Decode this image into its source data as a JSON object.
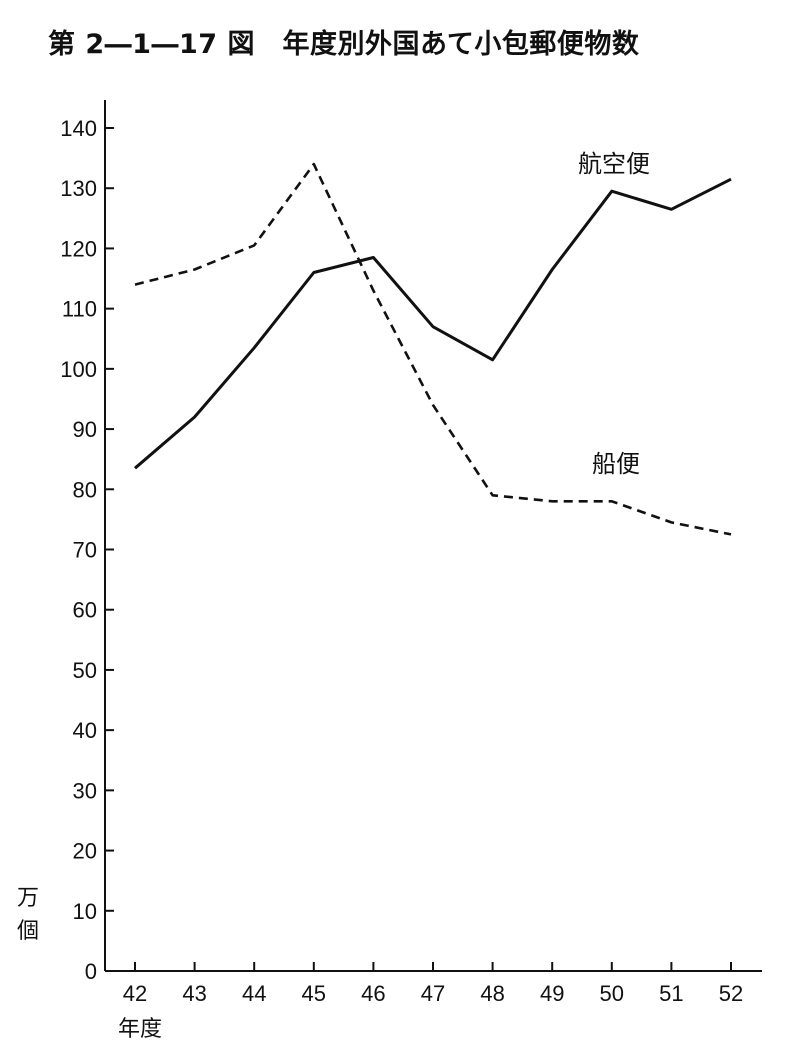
{
  "title": "第 2―1―17 図　年度別外国あて小包郵便物数",
  "y_unit": [
    "万",
    "個"
  ],
  "x_unit": "年度",
  "chart_data": {
    "type": "line",
    "title": "第 2―1―17 図　年度別外国あて小包郵便物数",
    "xlabel": "年度",
    "ylabel": "万個",
    "categories": [
      "42",
      "43",
      "44",
      "45",
      "46",
      "47",
      "48",
      "49",
      "50",
      "51",
      "52"
    ],
    "ylim": [
      0,
      140
    ],
    "yticks": [
      0,
      10,
      20,
      30,
      40,
      50,
      60,
      70,
      80,
      90,
      100,
      110,
      120,
      130,
      140
    ],
    "grid": false,
    "legend": "none",
    "series": [
      {
        "name": "航空便",
        "style": "solid",
        "values": [
          83.5,
          92,
          103.5,
          116,
          118.5,
          107,
          101.5,
          116.5,
          129.5,
          126.5,
          131.5
        ]
      },
      {
        "name": "船便",
        "style": "dashed",
        "values": [
          114,
          116.5,
          120.5,
          134,
          113,
          94,
          79,
          78,
          78,
          74.5,
          72.5
        ]
      }
    ]
  }
}
